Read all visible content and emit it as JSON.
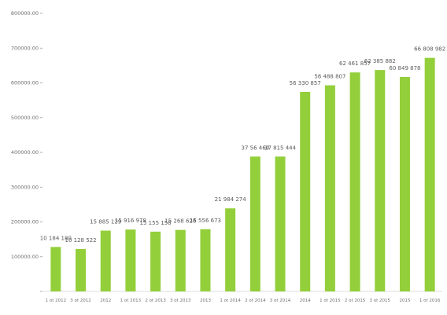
{
  "chart_data": {
    "type": "bar",
    "title": "",
    "xlabel": "",
    "ylabel": "",
    "ylim": [
      0,
      800000
    ],
    "grid": false,
    "legend": "none",
    "bar_color": "#93cf3a",
    "yticks": [
      "",
      "100000.00",
      "200000.00",
      "300000.00",
      "400000.00",
      "500000.00",
      "600000.00",
      "700000.00",
      "800000.00"
    ],
    "categories": [
      "1 ot 2012",
      "3 ot 2012",
      "2012",
      "1 ot 2013",
      "2 ot 2013",
      "3 ot 2013",
      "2013",
      "1 ot 2014",
      "2 ot 2014",
      "3 ot 2014",
      "2014",
      "1 ot 2015",
      "2 ot 2015",
      "3 ot 2015",
      "2015",
      "1 ot 2016"
    ],
    "values": [
      128000,
      122000,
      175000,
      178000,
      172000,
      177000,
      179000,
      239000,
      388000,
      388000,
      574000,
      593000,
      630000,
      637000,
      617000,
      672000
    ],
    "data_labels": [
      "10 184 180",
      "10 128 522",
      "15 885 129",
      "15 916 978",
      "15 155 158",
      "15 268 626",
      "15 556 673",
      "21 984 274",
      "37 56 460",
      "37 815 444",
      "56 330 857",
      "56 488 807",
      "62 461 857",
      "62 385 882",
      "60 849 878",
      "66 808 982"
    ]
  }
}
